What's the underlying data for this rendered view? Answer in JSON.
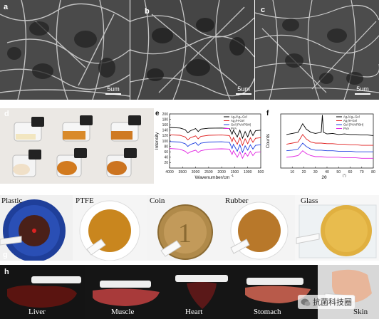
{
  "sem_panels": [
    {
      "letter": "a",
      "scale": "5um"
    },
    {
      "letter": "b",
      "scale": "5um"
    },
    {
      "letter": "c",
      "scale": "5um"
    }
  ],
  "panel_d": {
    "letter": "d"
  },
  "panel_g": {
    "letter": "g"
  },
  "panel_h": {
    "letter": "h"
  },
  "substrates": [
    "Plastic",
    "PTFE",
    "Coin",
    "Rubber",
    "Glass"
  ],
  "tissues": [
    "Liver",
    "Muscle",
    "Heart",
    "Stomach",
    "Skin"
  ],
  "watermark": "抗菌科技圈",
  "chart_data": [
    {
      "letter": "e",
      "type": "line",
      "title": "",
      "xlabel": "Wavenumber/cm",
      "xlabel_sup": "-1",
      "ylabel": "Intensity",
      "xlim": [
        4000,
        500
      ],
      "ylim": [
        0,
        200
      ],
      "xticks": [
        "4000",
        "3500",
        "3000",
        "2500",
        "2000",
        "1500",
        "1000",
        "500"
      ],
      "yticks": [
        "20",
        "40",
        "60",
        "80",
        "100",
        "120",
        "140",
        "160",
        "180",
        "200"
      ],
      "legend_position": "top-right",
      "series": [
        {
          "name": "Ag₂/Ag₃-Gel",
          "color": "#000000",
          "values": [
            [
              4000,
              150
            ],
            [
              3600,
              148
            ],
            [
              3400,
              142
            ],
            [
              3300,
              130
            ],
            [
              3200,
              138
            ],
            [
              3000,
              146
            ],
            [
              2900,
              135
            ],
            [
              2800,
              144
            ],
            [
              2500,
              147
            ],
            [
              2000,
              148
            ],
            [
              1700,
              146
            ],
            [
              1600,
              125
            ],
            [
              1550,
              140
            ],
            [
              1400,
              115
            ],
            [
              1300,
              140
            ],
            [
              1200,
              110
            ],
            [
              1100,
              135
            ],
            [
              1000,
              115
            ],
            [
              900,
              140
            ],
            [
              800,
              120
            ],
            [
              700,
              138
            ],
            [
              500,
              140
            ]
          ]
        },
        {
          "name": "Ag₂/H-Gel",
          "color": "#e02020",
          "values": [
            [
              4000,
              123
            ],
            [
              3600,
              121
            ],
            [
              3400,
              115
            ],
            [
              3300,
              104
            ],
            [
              3200,
              112
            ],
            [
              3000,
              119
            ],
            [
              2900,
              108
            ],
            [
              2800,
              117
            ],
            [
              2500,
              121
            ],
            [
              2000,
              122
            ],
            [
              1700,
              120
            ],
            [
              1600,
              98
            ],
            [
              1550,
              113
            ],
            [
              1400,
              88
            ],
            [
              1300,
              112
            ],
            [
              1200,
              84
            ],
            [
              1100,
              108
            ],
            [
              1000,
              90
            ],
            [
              900,
              112
            ],
            [
              800,
              95
            ],
            [
              700,
              110
            ],
            [
              500,
              112
            ]
          ]
        },
        {
          "name": "Gel (PVA/PBH)",
          "color": "#2040e0",
          "values": [
            [
              4000,
              98
            ],
            [
              3600,
              96
            ],
            [
              3400,
              90
            ],
            [
              3300,
              80
            ],
            [
              3200,
              87
            ],
            [
              3000,
              94
            ],
            [
              2900,
              84
            ],
            [
              2800,
              92
            ],
            [
              2500,
              96
            ],
            [
              2000,
              97
            ],
            [
              1700,
              95
            ],
            [
              1600,
              72
            ],
            [
              1550,
              88
            ],
            [
              1400,
              62
            ],
            [
              1300,
              86
            ],
            [
              1200,
              58
            ],
            [
              1100,
              82
            ],
            [
              1000,
              66
            ],
            [
              900,
              86
            ],
            [
              800,
              70
            ],
            [
              700,
              84
            ],
            [
              500,
              86
            ]
          ]
        },
        {
          "name": "PVA",
          "color": "#e020e0",
          "values": [
            [
              4000,
              72
            ],
            [
              3600,
              70
            ],
            [
              3400,
              62
            ],
            [
              3300,
              54
            ],
            [
              3200,
              60
            ],
            [
              3000,
              66
            ],
            [
              2900,
              57
            ],
            [
              2800,
              64
            ],
            [
              2500,
              70
            ],
            [
              2000,
              71
            ],
            [
              1700,
              70
            ],
            [
              1600,
              50
            ],
            [
              1550,
              64
            ],
            [
              1400,
              40
            ],
            [
              1300,
              60
            ],
            [
              1200,
              36
            ],
            [
              1100,
              56
            ],
            [
              1000,
              44
            ],
            [
              900,
              62
            ],
            [
              800,
              46
            ],
            [
              700,
              58
            ],
            [
              500,
              60
            ]
          ]
        }
      ]
    },
    {
      "letter": "f",
      "type": "line",
      "title": "",
      "xlabel": "2θ",
      "xlabel_sup": "(°)",
      "ylabel": "Counts",
      "xlim": [
        0,
        80
      ],
      "ylim": [
        0,
        1
      ],
      "xticks": [
        "10",
        "20",
        "30",
        "40",
        "50",
        "60",
        "70",
        "80"
      ],
      "yticks": [],
      "legend_position": "top-right",
      "series": [
        {
          "name": "Ag₂/Ag₃-Gel",
          "color": "#000000",
          "values": [
            [
              5,
              0.62
            ],
            [
              10,
              0.64
            ],
            [
              15,
              0.66
            ],
            [
              19,
              0.82
            ],
            [
              22,
              0.72
            ],
            [
              26,
              0.66
            ],
            [
              30,
              0.64
            ],
            [
              35,
              0.66
            ],
            [
              36,
              0.98
            ],
            [
              37,
              0.66
            ],
            [
              40,
              0.63
            ],
            [
              45,
              0.64
            ],
            [
              50,
              0.62
            ],
            [
              55,
              0.63
            ],
            [
              60,
              0.62
            ],
            [
              65,
              0.62
            ],
            [
              70,
              0.61
            ],
            [
              75,
              0.61
            ],
            [
              80,
              0.6
            ]
          ]
        },
        {
          "name": "Ag₂/H-Gel",
          "color": "#e02020",
          "values": [
            [
              5,
              0.44
            ],
            [
              10,
              0.46
            ],
            [
              15,
              0.48
            ],
            [
              19,
              0.62
            ],
            [
              22,
              0.54
            ],
            [
              26,
              0.48
            ],
            [
              30,
              0.46
            ],
            [
              35,
              0.46
            ],
            [
              40,
              0.45
            ],
            [
              45,
              0.45
            ],
            [
              50,
              0.44
            ],
            [
              55,
              0.44
            ],
            [
              60,
              0.43
            ],
            [
              65,
              0.43
            ],
            [
              70,
              0.42
            ],
            [
              75,
              0.42
            ],
            [
              80,
              0.42
            ]
          ]
        },
        {
          "name": "Gel (PVA/PBH)",
          "color": "#2040e0",
          "values": [
            [
              5,
              0.32
            ],
            [
              10,
              0.33
            ],
            [
              15,
              0.35
            ],
            [
              19,
              0.46
            ],
            [
              22,
              0.4
            ],
            [
              26,
              0.35
            ],
            [
              30,
              0.33
            ],
            [
              35,
              0.33
            ],
            [
              40,
              0.32
            ],
            [
              45,
              0.32
            ],
            [
              50,
              0.31
            ],
            [
              55,
              0.31
            ],
            [
              60,
              0.31
            ],
            [
              65,
              0.3
            ],
            [
              70,
              0.3
            ],
            [
              75,
              0.3
            ],
            [
              80,
              0.3
            ]
          ]
        },
        {
          "name": "PVA",
          "color": "#e020e0",
          "values": [
            [
              5,
              0.2
            ],
            [
              10,
              0.21
            ],
            [
              15,
              0.23
            ],
            [
              19,
              0.32
            ],
            [
              22,
              0.27
            ],
            [
              26,
              0.23
            ],
            [
              30,
              0.21
            ],
            [
              35,
              0.21
            ],
            [
              40,
              0.2
            ],
            [
              45,
              0.2
            ],
            [
              50,
              0.2
            ],
            [
              55,
              0.19
            ],
            [
              60,
              0.19
            ],
            [
              65,
              0.19
            ],
            [
              70,
              0.18
            ],
            [
              75,
              0.18
            ],
            [
              80,
              0.18
            ]
          ]
        }
      ]
    }
  ]
}
